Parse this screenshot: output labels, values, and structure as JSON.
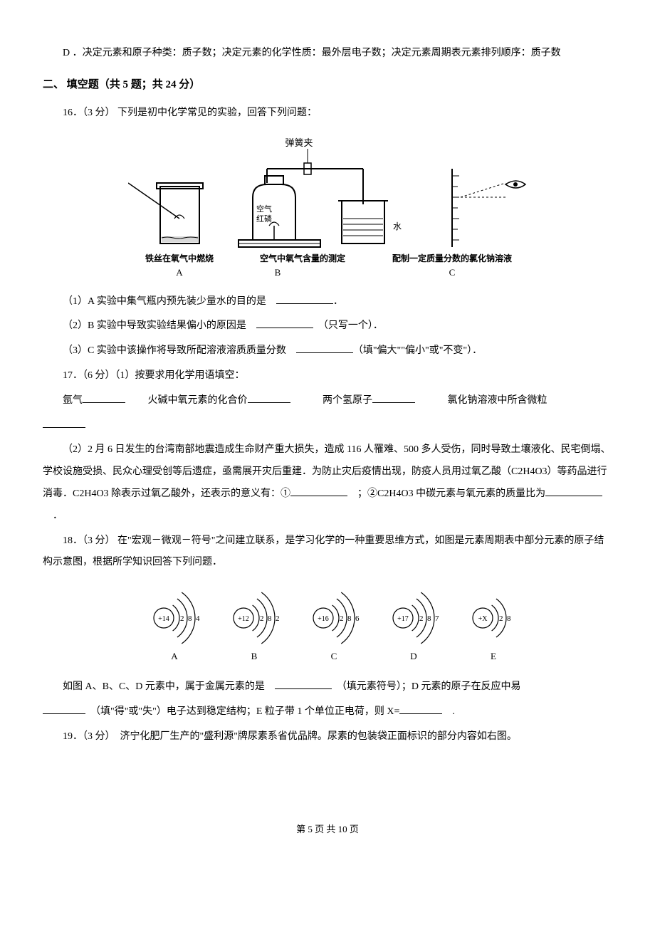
{
  "option_d": "D ．决定元素和原子种类：质子数；决定元素的化学性质：最外层电子数；决定元素周期表元素排列顺序：质子数",
  "section_title": "二、 填空题（共 5 题；共 24 分）",
  "q16": {
    "intro": "16．（3 分） 下列是初中化学常见的实验，回答下列问题：",
    "sub1_pre": "（1）A 实验中集气瓶内预先装少量水的目的是　",
    "sub1_post": "．",
    "sub2_pre": "（2）B 实验中导致实验结果偏小的原因是　",
    "sub2_post": "　（只写一个）．",
    "sub3_pre": "（3）C 实验中该操作将导致所配溶液溶质质量分数　",
    "sub3_post": "（填\"偏大\"\"偏小\"或\"不变\"）．",
    "figure_labels": {
      "clip": "弹簧夹",
      "air_hongp": "空气\n红磷",
      "water": "水",
      "capA": "铁丝在氧气中燃烧",
      "capB": "空气中氧气含量的测定",
      "capC": "配制一定质量分数的氯化钠溶液",
      "A": "A",
      "B": "B",
      "C": "C"
    }
  },
  "q17": {
    "intro": "17．（6 分）（1）按要求用化学用语填空：",
    "line1_a": "氩气",
    "line1_b": "　　火碱中氧元素的化合价",
    "line1_c": "　　　两个氢原子",
    "line1_d": "　　　氯化钠溶液中所含微粒",
    "para2": "（2）2 月 6 日发生的台湾南部地震造成生命财产重大损失，造成 116 人罹难、500 多人受伤，同时导致土壤液化、民宅倒塌、学校设施受损、民众心理受创等后遗症，亟需展开灾后重建．为防止灾后疫情出现，防疫人员用过氧乙酸（C2H4O3）等药品进行消毒．C2H4O3 除表示过氧乙酸外，还表示的意义有：①",
    "para2_mid": "　；②C2H4O3 中碳元素与氧元素的质量比为",
    "para2_end": "　．"
  },
  "q18": {
    "intro": "18．（3 分） 在\"宏观－微观－符号\"之间建立联系，是学习化学的一种重要思维方式，如图是元素周期表中部分元素的原子结构示意图，根据所学知识回答下列问题．",
    "atoms": [
      {
        "label": "A",
        "nucleus": "+14",
        "shells": "2 8 4"
      },
      {
        "label": "B",
        "nucleus": "+12",
        "shells": "2 8 2"
      },
      {
        "label": "C",
        "nucleus": "+16",
        "shells": "2 8 6"
      },
      {
        "label": "D",
        "nucleus": "+17",
        "shells": "2 8 7"
      },
      {
        "label": "E",
        "nucleus": "+X",
        "shells": "2 8"
      }
    ],
    "line1_pre": "如图 A、B、C、D 元素中，属于金属元素的是　",
    "line1_post": "　（填元素符号）；D 元素的原子在反应中易",
    "line2_pre": "",
    "line2_mid": "　（填\"得\"或\"失\"）电子达到稳定结构；E 粒子带 1 个单位正电荷，则 X=",
    "line2_end": "　."
  },
  "q19": {
    "intro": "19．（3 分）　济宁化肥厂生产的\"盛利源\"牌尿素系省优品牌。尿素的包装袋正面标识的部分内容如右图。"
  },
  "footer": "第 5 页 共 10 页",
  "colors": {
    "text": "#000000",
    "background": "#ffffff",
    "stroke": "#000000"
  }
}
